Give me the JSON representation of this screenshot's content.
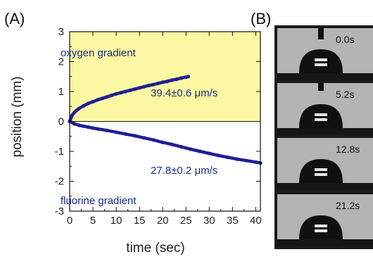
{
  "panels": {
    "a_label": "(A)",
    "b_label": "(B)"
  },
  "chart_data": {
    "type": "scatter",
    "title": "",
    "xlabel": "time (sec)",
    "ylabel": "position (mm)",
    "xlim": [
      0,
      41
    ],
    "ylim": [
      -3,
      3
    ],
    "x_ticks": [
      0,
      5,
      10,
      15,
      20,
      25,
      30,
      35,
      40
    ],
    "y_ticks": [
      -3,
      -2,
      -1,
      0,
      1,
      2,
      3
    ],
    "x_tick_labels": [
      "0",
      "5",
      "10",
      "15",
      "20",
      "25",
      "30",
      "35",
      "40"
    ],
    "y_tick_labels": [
      "-3",
      "-2",
      "-1",
      "0",
      "1",
      "2",
      "3"
    ],
    "highlight_region": {
      "x": [
        0,
        41
      ],
      "y": [
        0,
        3
      ],
      "color": "#fbf7a2"
    },
    "series": [
      {
        "color": "#1f1f96",
        "annotation": "39.4±0.6 μm/s",
        "region_label": "oxygen gradient",
        "x": [
          0,
          0.5,
          1,
          1.5,
          2,
          3,
          4,
          5,
          6,
          7,
          8,
          9,
          10,
          11,
          12,
          13,
          14,
          15,
          16,
          17,
          18,
          19,
          20,
          21,
          22,
          23,
          24,
          25,
          25.5
        ],
        "y": [
          0,
          0.2,
          0.3,
          0.37,
          0.43,
          0.52,
          0.6,
          0.66,
          0.72,
          0.77,
          0.82,
          0.87,
          0.92,
          0.96,
          1.0,
          1.04,
          1.08,
          1.12,
          1.16,
          1.2,
          1.23,
          1.27,
          1.31,
          1.34,
          1.38,
          1.41,
          1.45,
          1.48,
          1.5
        ]
      },
      {
        "color": "#1f1f96",
        "annotation": "27.8±0.2 μm/s",
        "region_label": "fluorine gradient",
        "x": [
          0,
          1,
          2,
          3,
          4,
          5,
          6,
          8,
          10,
          12,
          14,
          16,
          18,
          20,
          22,
          24,
          26,
          28,
          30,
          32,
          34,
          36,
          38,
          40,
          41
        ],
        "y": [
          0,
          -0.08,
          -0.13,
          -0.16,
          -0.19,
          -0.22,
          -0.25,
          -0.3,
          -0.36,
          -0.42,
          -0.48,
          -0.55,
          -0.62,
          -0.7,
          -0.77,
          -0.85,
          -0.93,
          -1.0,
          -1.07,
          -1.14,
          -1.2,
          -1.26,
          -1.31,
          -1.36,
          -1.39
        ]
      }
    ]
  },
  "frames": [
    {
      "label": "0.0s"
    },
    {
      "label": "5.2s"
    },
    {
      "label": "12.8s"
    },
    {
      "label": "21.2s"
    }
  ]
}
